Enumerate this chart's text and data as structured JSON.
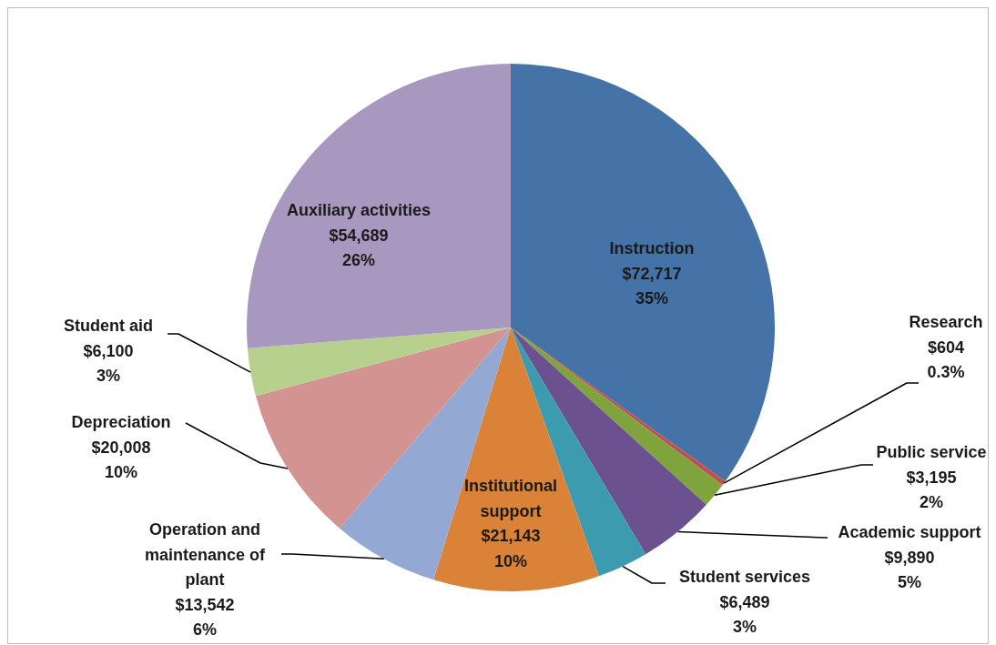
{
  "chart_data": {
    "type": "pie",
    "categories": [
      "Instruction",
      "Research",
      "Public service",
      "Academic support",
      "Student services",
      "Institutional support",
      "Operation and maintenance of plant",
      "Depreciation",
      "Student aid",
      "Auxiliary activities"
    ],
    "values": [
      72717,
      604,
      3195,
      9890,
      6489,
      21143,
      13542,
      20008,
      6100,
      54689
    ],
    "colors": [
      "#4572a7",
      "#c0504d",
      "#7fa43e",
      "#6b5190",
      "#3d9bb0",
      "#db8239",
      "#93a9d4",
      "#d29391",
      "#b7d08d",
      "#a898bf"
    ],
    "value_labels": [
      "$72,717\n35%",
      "$604\n0.3%",
      "$3,195\n2%",
      "$9,890\n5%",
      "$6,489\n3%",
      "$21,143\n10%",
      "$13,542\n6%",
      "$20,008\n10%",
      "$6,100\n3%",
      "$54,689\n26%"
    ]
  }
}
